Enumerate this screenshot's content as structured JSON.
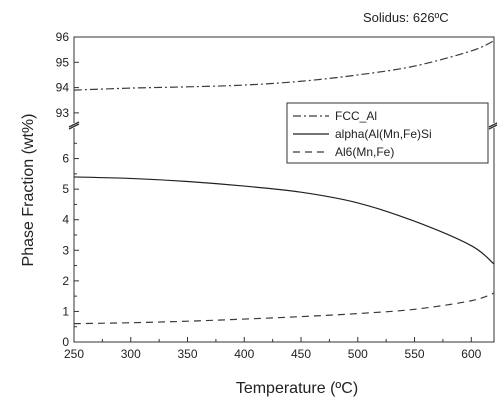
{
  "annotation": "Solidus: 626ºC",
  "chart_data": {
    "type": "line",
    "xlabel": "Temperature (ºC)",
    "ylabel": "Phase Fraction (wt%)",
    "xlim": [
      250,
      620
    ],
    "x_ticks": [
      "250",
      "300",
      "350",
      "400",
      "450",
      "500",
      "550",
      "600"
    ],
    "y_axis_break": true,
    "lower_ylim": [
      0,
      7
    ],
    "lower_y_ticks": [
      "0",
      "1",
      "2",
      "3",
      "4",
      "5",
      "6"
    ],
    "upper_ylim": [
      92.6,
      96
    ],
    "upper_y_ticks": [
      "93",
      "94",
      "95",
      "96"
    ],
    "legend_position": "upper-right inside lower panel",
    "grid": false,
    "series": [
      {
        "name": "FCC_Al",
        "style": "dash-dot",
        "color": "#3a3a3a",
        "panel": "upper",
        "x": [
          250,
          300,
          350,
          400,
          450,
          500,
          550,
          600,
          620
        ],
        "y": [
          93.9,
          93.98,
          94.03,
          94.1,
          94.25,
          94.5,
          94.85,
          95.45,
          95.85
        ]
      },
      {
        "name": "alpha(Al(Mn,Fe)Si",
        "style": "solid",
        "color": "#222222",
        "panel": "lower",
        "x": [
          250,
          300,
          350,
          400,
          450,
          500,
          550,
          600,
          620
        ],
        "y": [
          5.4,
          5.35,
          5.25,
          5.1,
          4.9,
          4.55,
          3.95,
          3.15,
          2.55
        ]
      },
      {
        "name": "Al6(Mn,Fe)",
        "style": "dashed",
        "color": "#3a3a3a",
        "panel": "lower",
        "x": [
          250,
          300,
          350,
          400,
          450,
          500,
          550,
          600,
          620
        ],
        "y": [
          0.6,
          0.63,
          0.68,
          0.75,
          0.83,
          0.93,
          1.07,
          1.35,
          1.6
        ]
      }
    ]
  }
}
